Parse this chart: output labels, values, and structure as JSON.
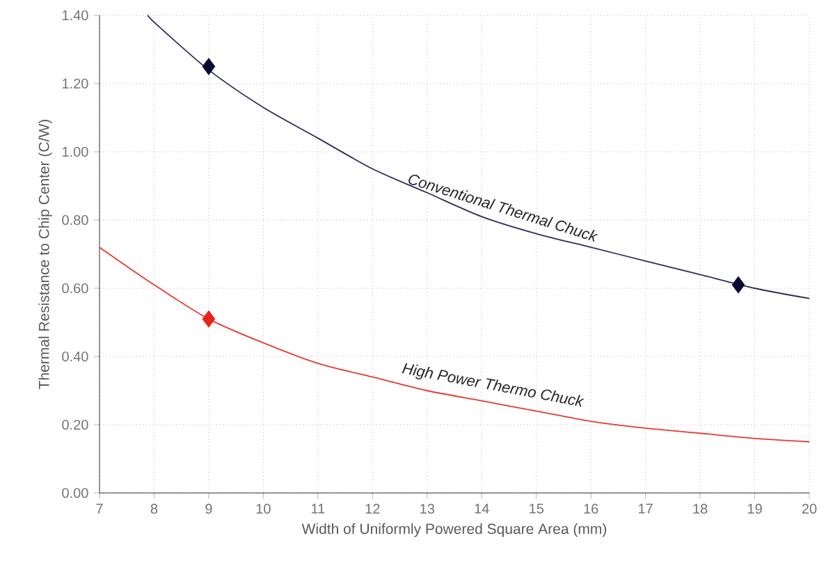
{
  "chart_data": {
    "type": "line",
    "xlabel": "Width of Uniformly Powered Square Area (mm)",
    "ylabel": "Thermal Resistance to Chip Center (C/W)",
    "xlim": [
      7,
      20
    ],
    "ylim": [
      0,
      1.4
    ],
    "xticks": [
      7,
      8,
      9,
      10,
      11,
      12,
      13,
      14,
      15,
      16,
      17,
      18,
      19,
      20
    ],
    "yticks": [
      {
        "value": 0,
        "label": "0.00"
      },
      {
        "value": 0.2,
        "label": "0.20"
      },
      {
        "value": 0.4,
        "label": "0.40"
      },
      {
        "value": 0.6,
        "label": "0.60"
      },
      {
        "value": 0.8,
        "label": "0.80"
      },
      {
        "value": 1.0,
        "label": "1.00"
      },
      {
        "value": 1.2,
        "label": "1.20"
      },
      {
        "value": 1.4,
        "label": "1.40"
      }
    ],
    "grid": true,
    "series": [
      {
        "name": "Conventional Thermal Chuck",
        "color": "#2b2d5e",
        "x": [
          7.9,
          8,
          9,
          10,
          11,
          12,
          13,
          14,
          15,
          16,
          17,
          18,
          19,
          20
        ],
        "values": [
          1.4,
          1.38,
          1.24,
          1.13,
          1.04,
          0.95,
          0.88,
          0.81,
          0.76,
          0.72,
          0.68,
          0.64,
          0.6,
          0.57
        ]
      },
      {
        "name": "High Power Thermo Chuck",
        "color": "#e8392e",
        "x": [
          7,
          8,
          9,
          10,
          11,
          12,
          13,
          14,
          15,
          16,
          17,
          18,
          19,
          20
        ],
        "values": [
          0.72,
          0.61,
          0.51,
          0.44,
          0.38,
          0.34,
          0.3,
          0.27,
          0.24,
          0.21,
          0.19,
          0.175,
          0.16,
          0.15
        ]
      },
      {
        "type": "scatter",
        "marker": "diamond",
        "color": "#0a0a30",
        "x": [
          9,
          18.7
        ],
        "values": [
          1.25,
          0.61
        ]
      },
      {
        "type": "scatter",
        "marker": "diamond",
        "color": "#e8231c",
        "x": [
          9
        ],
        "values": [
          0.51
        ]
      }
    ]
  }
}
